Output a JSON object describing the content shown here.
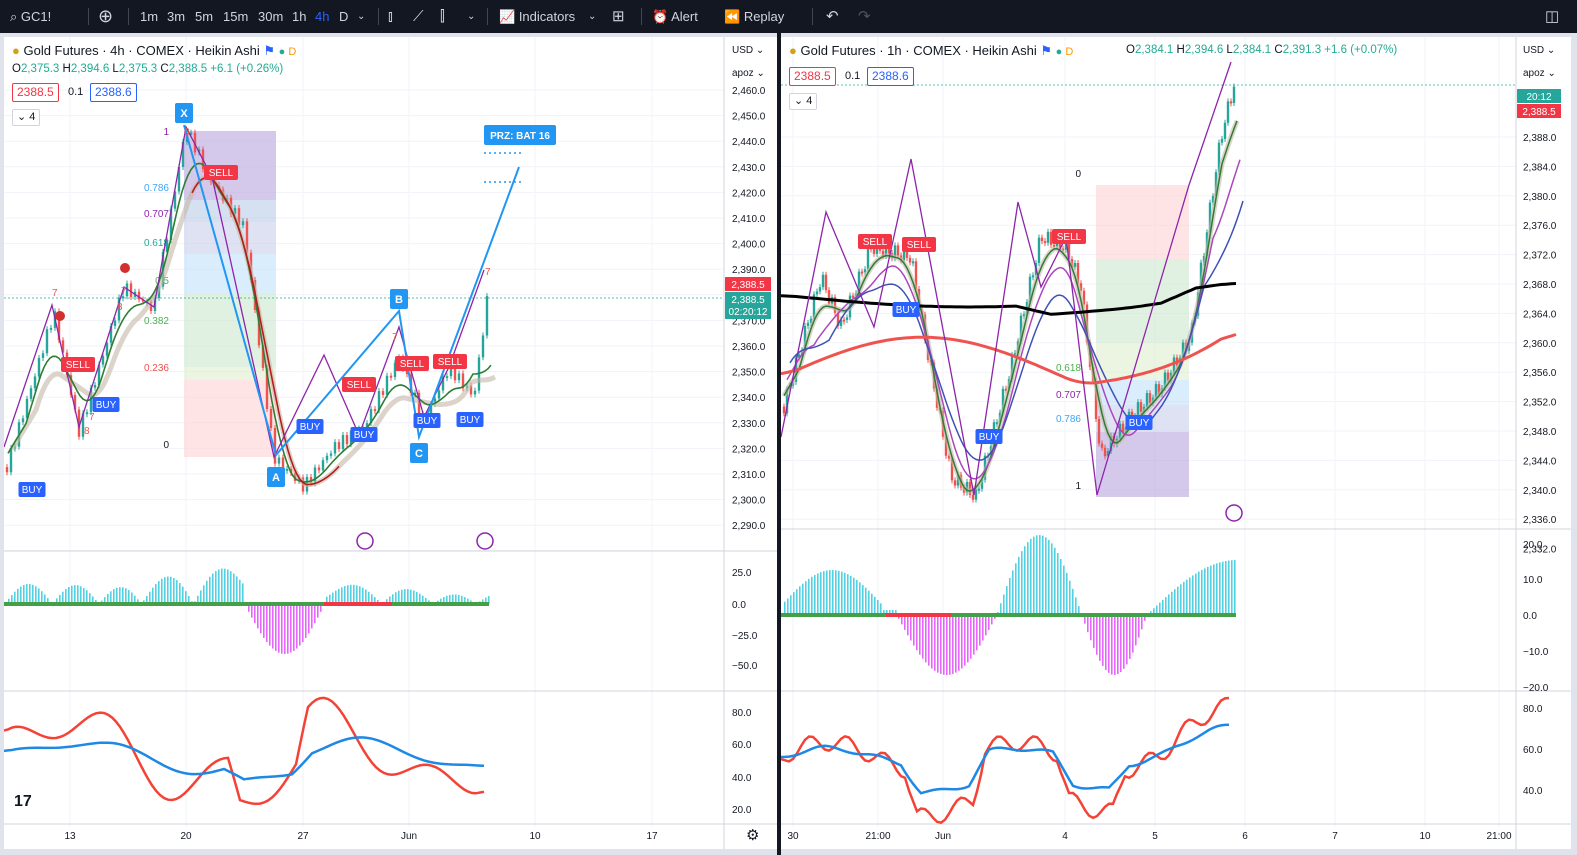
{
  "toolbar": {
    "symbol": "GC1!",
    "intervals": [
      "1m",
      "3m",
      "5m",
      "15m",
      "30m",
      "1h",
      "4h",
      "D"
    ],
    "active_interval": "4h",
    "indicators": "Indicators",
    "alert": "Alert",
    "replay": "Replay"
  },
  "colors": {
    "up": "#26a69a",
    "down": "#ef5350",
    "accent": "#2962ff",
    "buy": "#2962ff",
    "sell": "#f23645",
    "ohlc": "#22ab94"
  },
  "left": {
    "title": "Gold Futures · 4h · COMEX · Heikin Ashi",
    "ohlc": {
      "o": "2,375.3",
      "h": "2,394.6",
      "l": "2,375.3",
      "c": "2,388.5",
      "chg": "+6.1 (+0.26%)"
    },
    "bid": "2388.5",
    "spread": "0.1",
    "ask": "2388.6",
    "counter": "4",
    "currency": "USD",
    "scale_mode": "apoz",
    "price_ticks": [
      "2,460.0",
      "2,450.0",
      "2,440.0",
      "2,430.0",
      "2,420.0",
      "2,410.0",
      "2,400.0",
      "2,390.0",
      "2,380.0",
      "2,370.0",
      "2,360.0",
      "2,350.0",
      "2,340.0",
      "2,330.0",
      "2,320.0",
      "2,310.0",
      "2,300.0",
      "2,290.0"
    ],
    "price_tag": "2,388.5",
    "price_tag2": "2,388.5",
    "countdown": "02:20:12",
    "fib_labels": [
      "1",
      "0.786",
      "0.707",
      "0.618",
      "0.5",
      "0.382",
      "0.236",
      "0"
    ],
    "pattern_points": [
      "X",
      "A",
      "B",
      "C"
    ],
    "prz_label": "PRZ: BAT 16",
    "signals": {
      "buy": "BUY",
      "sell": "SELL"
    },
    "counts": [
      "7",
      "8",
      "7",
      "8",
      "7",
      "8",
      "7",
      "7"
    ],
    "osc1_ticks": [
      "25.0",
      "0.0",
      "−25.0",
      "−50.0"
    ],
    "osc2_ticks": [
      "80.0",
      "60.0",
      "40.0",
      "20.0"
    ],
    "time_ticks": [
      "13",
      "20",
      "27",
      "Jun",
      "10",
      "17"
    ]
  },
  "right": {
    "title": "Gold Futures · 1h · COMEX · Heikin Ashi",
    "ohlc": {
      "o": "2,384.1",
      "h": "2,394.6",
      "l": "2,384.1",
      "c": "2,391.3",
      "chg": "+1.6 (+0.07%)"
    },
    "bid": "2388.5",
    "spread": "0.1",
    "ask": "2388.6",
    "counter": "4",
    "currency": "USD",
    "scale_mode": "apoz",
    "price_ticks": [
      "2,388.0",
      "2,384.0",
      "2,380.0",
      "2,376.0",
      "2,372.0",
      "2,368.0",
      "2,364.0",
      "2,360.0",
      "2,356.0",
      "2,352.0",
      "2,348.0",
      "2,344.0",
      "2,340.0",
      "2,336.0",
      "2,332.0"
    ],
    "countdown": "20:12",
    "price_tag": "2,388.5",
    "fib_labels": [
      "0",
      "0.618",
      "0.707",
      "0.786",
      "1"
    ],
    "signals": {
      "buy": "BUY",
      "sell": "SELL"
    },
    "osc1_ticks": [
      "20.0",
      "10.0",
      "0.0",
      "−10.0",
      "−20.0"
    ],
    "osc2_ticks": [
      "80.0",
      "60.0",
      "40.0"
    ],
    "time_ticks": [
      "30",
      "21:00",
      "Jun",
      "4",
      "5",
      "6",
      "7",
      "10",
      "21:00"
    ]
  }
}
